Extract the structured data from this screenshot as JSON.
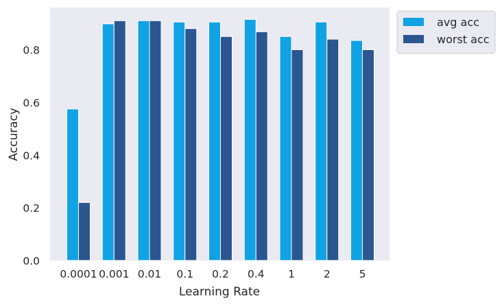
{
  "chart_data": {
    "type": "bar",
    "title": "",
    "xlabel": "Learning Rate",
    "ylabel": "Accuracy",
    "categories": [
      "0.0001",
      "0.001",
      "0.01",
      "0.1",
      "0.2",
      "0.4",
      "1",
      "2",
      "5"
    ],
    "series": [
      {
        "name": "avg acc",
        "color": "#10a2e3",
        "values": [
          0.575,
          0.898,
          0.91,
          0.905,
          0.905,
          0.915,
          0.85,
          0.905,
          0.835
        ]
      },
      {
        "name": "worst acc",
        "color": "#2b5690",
        "values": [
          0.22,
          0.91,
          0.91,
          0.88,
          0.85,
          0.868,
          0.8,
          0.84,
          0.8
        ]
      }
    ],
    "ylim": [
      0,
      0.96
    ],
    "yticks": [
      "0.0",
      "0.2",
      "0.4",
      "0.6",
      "0.8"
    ],
    "grid": false,
    "legend_position": "outside-top-right",
    "background_color": "#eaeaf2"
  }
}
